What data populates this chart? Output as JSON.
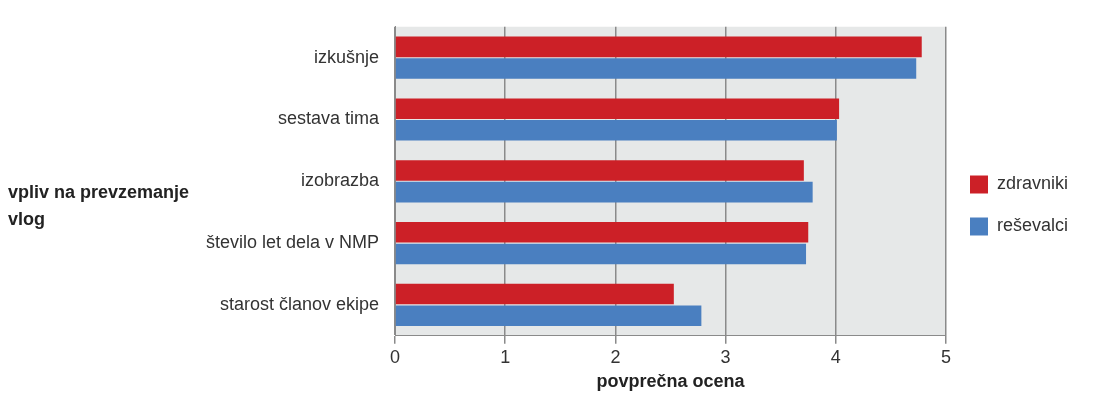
{
  "chart_data": {
    "type": "bar",
    "orientation": "horizontal",
    "xlabel": "povprečna ocena",
    "ylabel": "vpliv na prevzemanje vlog",
    "categories": [
      "izkušnje",
      "sestava tima",
      "izobrazba",
      "število let dela v NMP",
      "starost članov ekipe"
    ],
    "series": [
      {
        "name": "zdravniki",
        "color": "#cc2027",
        "values": [
          4.78,
          4.03,
          3.71,
          3.75,
          2.53
        ]
      },
      {
        "name": "reševalci",
        "color": "#4a7fc0",
        "values": [
          4.73,
          4.01,
          3.79,
          3.73,
          2.78
        ]
      }
    ],
    "xlim": [
      0,
      5
    ],
    "xticks": [
      0,
      1,
      2,
      3,
      4,
      5
    ],
    "grid": "x",
    "legend": "right"
  }
}
